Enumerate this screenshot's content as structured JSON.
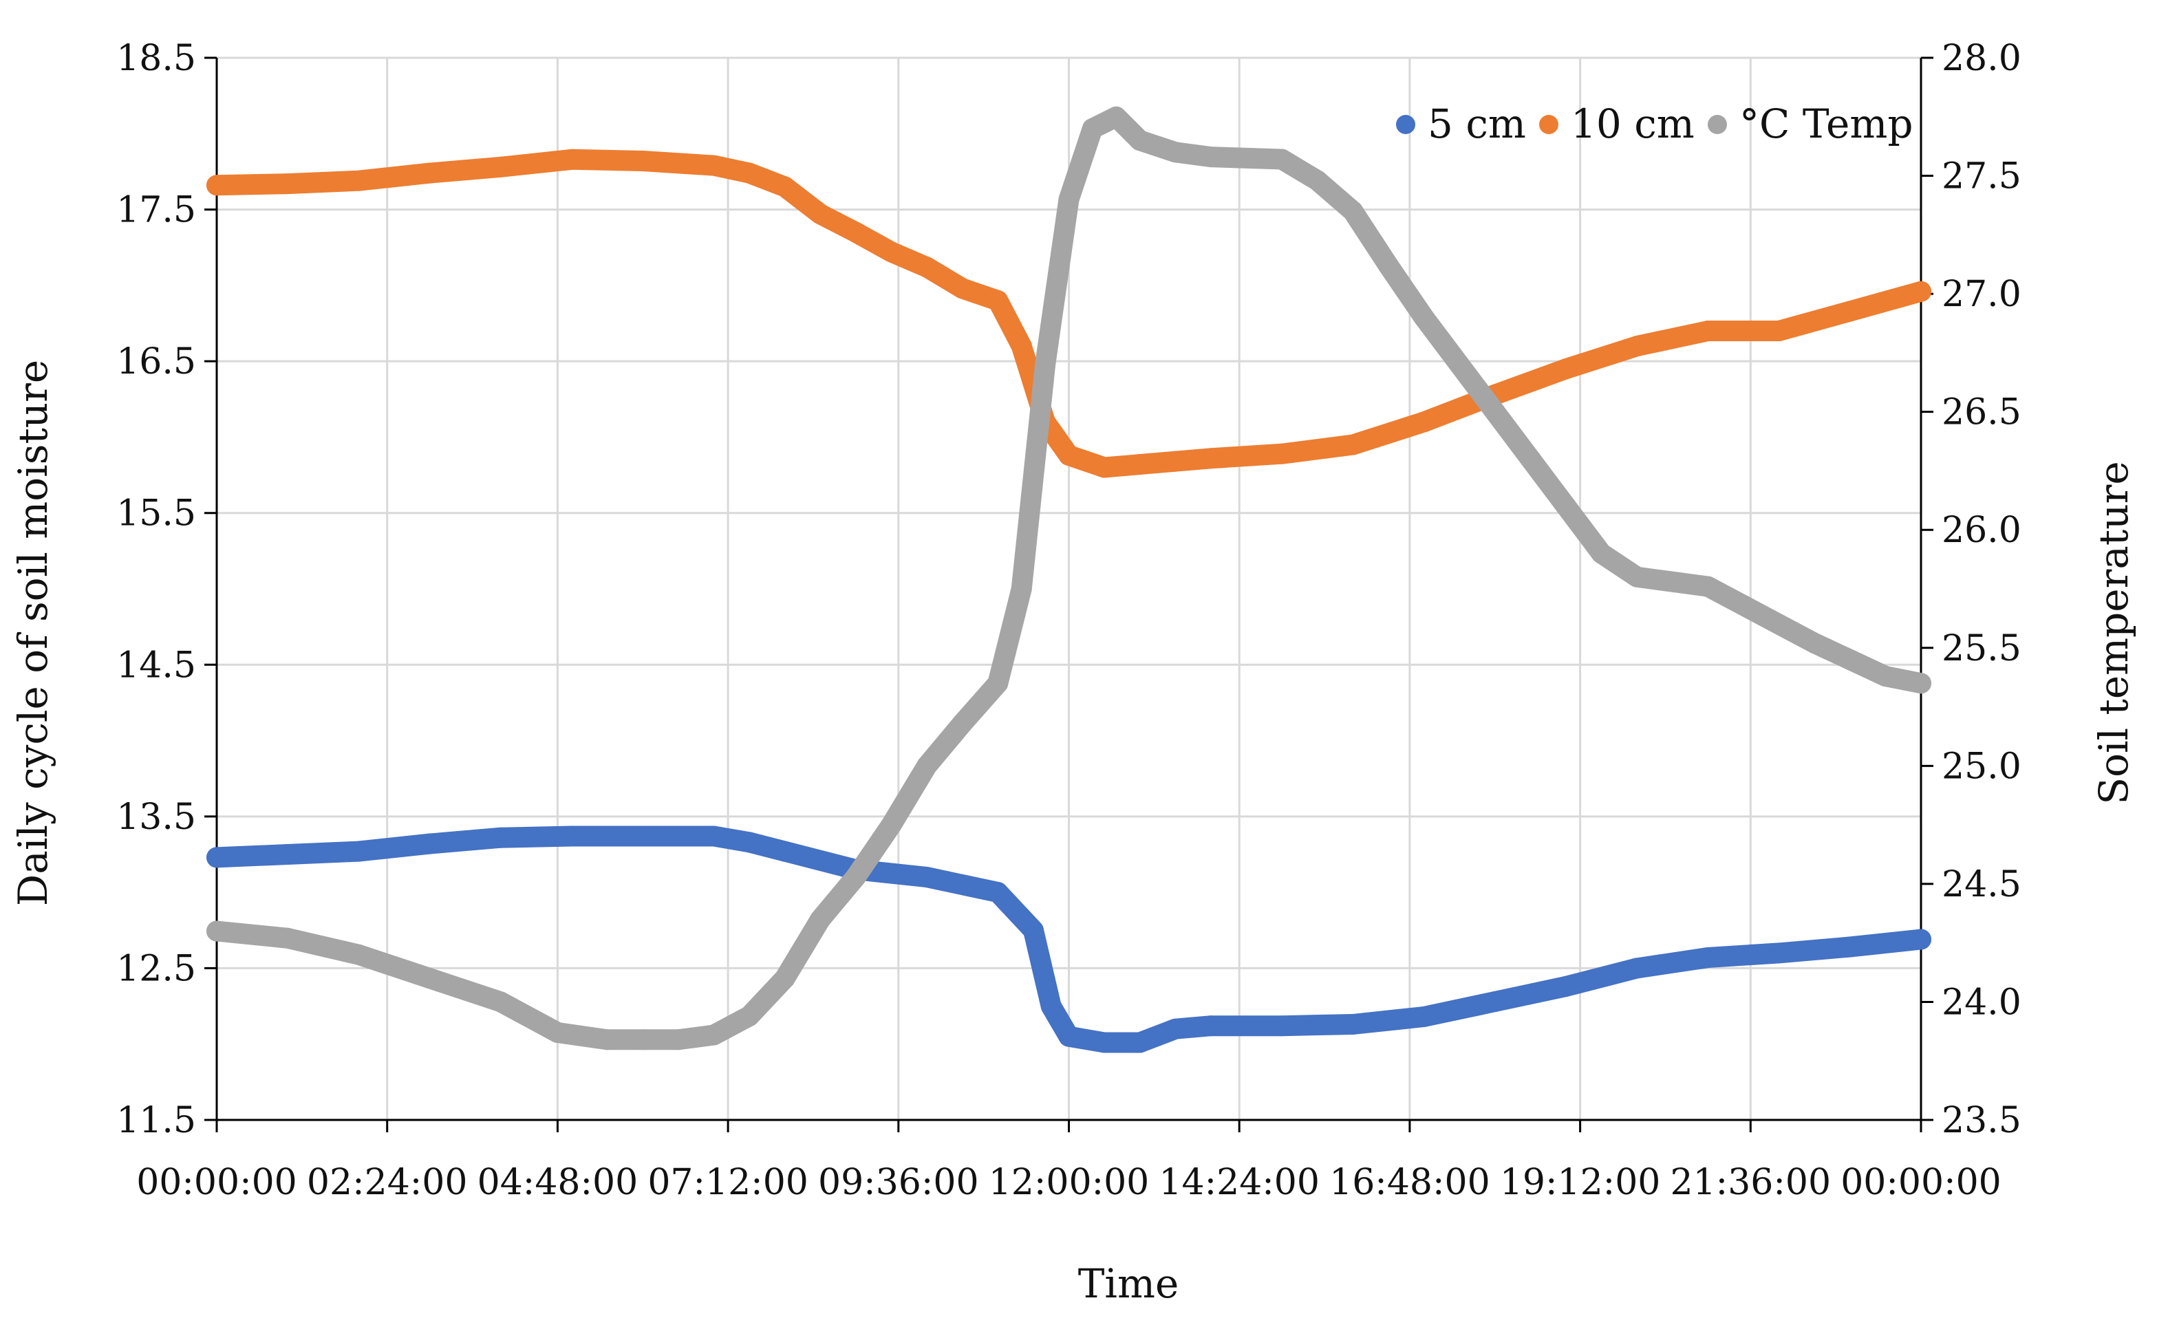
{
  "chart_data": {
    "type": "scatter",
    "title": "",
    "xlabel": "Time",
    "ylabel": "Daily cycle of soil moisture",
    "ylabel_right": "Soil temperature",
    "xlim": [
      "00:00:00",
      "24:00:00"
    ],
    "ylim": [
      11.5,
      18.5
    ],
    "ylim_right": [
      23.5,
      28.0
    ],
    "x_ticks": [
      "00:00:00",
      "02:24:00",
      "04:48:00",
      "07:12:00",
      "09:36:00",
      "12:00:00",
      "14:24:00",
      "16:48:00",
      "19:12:00",
      "21:36:00",
      "00:00:00"
    ],
    "y_ticks": [
      "18.5",
      "17.5",
      "16.5",
      "15.5",
      "14.5",
      "13.5",
      "12.5",
      "11.5"
    ],
    "y_ticks_right": [
      "28.0",
      "27.5",
      "27.0",
      "26.5",
      "26.0",
      "25.5",
      "25.0",
      "24.5",
      "24.0",
      "23.5"
    ],
    "grid": true,
    "legend_position": "top-right",
    "series": [
      {
        "name": "5 cm",
        "axis": "left",
        "color": "#4472C4",
        "x": [
          "00:00",
          "01:00",
          "02:00",
          "03:00",
          "04:00",
          "05:00",
          "06:00",
          "07:00",
          "07:30",
          "08:00",
          "09:00",
          "10:00",
          "11:00",
          "11:30",
          "11:45",
          "12:00",
          "12:30",
          "13:00",
          "13:30",
          "14:00",
          "15:00",
          "16:00",
          "17:00",
          "18:00",
          "19:00",
          "20:00",
          "21:00",
          "22:00",
          "23:00",
          "24:00"
        ],
        "values": [
          13.23,
          13.25,
          13.27,
          13.32,
          13.36,
          13.37,
          13.37,
          13.37,
          13.33,
          13.27,
          13.15,
          13.1,
          13.0,
          12.75,
          12.25,
          12.05,
          12.01,
          12.01,
          12.1,
          12.12,
          12.12,
          12.13,
          12.18,
          12.28,
          12.38,
          12.5,
          12.57,
          12.6,
          12.64,
          12.69
        ]
      },
      {
        "name": "10 cm",
        "axis": "left",
        "color": "#ED7D31",
        "x": [
          "00:00",
          "01:00",
          "02:00",
          "03:00",
          "04:00",
          "05:00",
          "06:00",
          "07:00",
          "07:30",
          "08:00",
          "08:30",
          "09:00",
          "09:30",
          "10:00",
          "10:30",
          "11:00",
          "11:20",
          "11:40",
          "12:00",
          "12:30",
          "13:00",
          "13:30",
          "14:00",
          "15:00",
          "16:00",
          "17:00",
          "18:00",
          "19:00",
          "20:00",
          "21:00",
          "22:00",
          "23:00",
          "24:00"
        ],
        "values": [
          17.66,
          17.67,
          17.69,
          17.74,
          17.78,
          17.83,
          17.82,
          17.79,
          17.74,
          17.65,
          17.47,
          17.35,
          17.22,
          17.12,
          16.98,
          16.9,
          16.6,
          16.1,
          15.88,
          15.8,
          15.82,
          15.84,
          15.86,
          15.89,
          15.95,
          16.1,
          16.28,
          16.45,
          16.6,
          16.7,
          16.7,
          16.83,
          16.96
        ]
      },
      {
        "name": "°C Temp",
        "axis": "right",
        "color": "#A5A5A5",
        "x": [
          "00:00",
          "01:00",
          "02:00",
          "03:00",
          "04:00",
          "04:48",
          "05:30",
          "06:00",
          "06:30",
          "07:00",
          "07:30",
          "08:00",
          "08:30",
          "09:00",
          "09:30",
          "10:00",
          "10:30",
          "11:00",
          "11:20",
          "11:40",
          "12:00",
          "12:20",
          "12:40",
          "13:00",
          "13:30",
          "14:00",
          "15:00",
          "15:30",
          "16:00",
          "16:30",
          "17:00",
          "17:30",
          "18:00",
          "18:30",
          "19:00",
          "19:30",
          "20:00",
          "21:00",
          "21:30",
          "22:00",
          "22:30",
          "23:00",
          "23:30",
          "24:00"
        ],
        "values": [
          24.3,
          24.27,
          24.2,
          24.1,
          24.0,
          23.87,
          23.84,
          23.84,
          23.84,
          23.86,
          23.94,
          24.1,
          24.35,
          24.53,
          24.75,
          25.0,
          25.18,
          25.35,
          25.75,
          26.7,
          27.4,
          27.7,
          27.75,
          27.65,
          27.6,
          27.58,
          27.57,
          27.48,
          27.35,
          27.12,
          26.9,
          26.7,
          26.5,
          26.3,
          26.1,
          25.9,
          25.8,
          25.76,
          25.68,
          25.6,
          25.52,
          25.45,
          25.38,
          25.35
        ]
      }
    ]
  }
}
